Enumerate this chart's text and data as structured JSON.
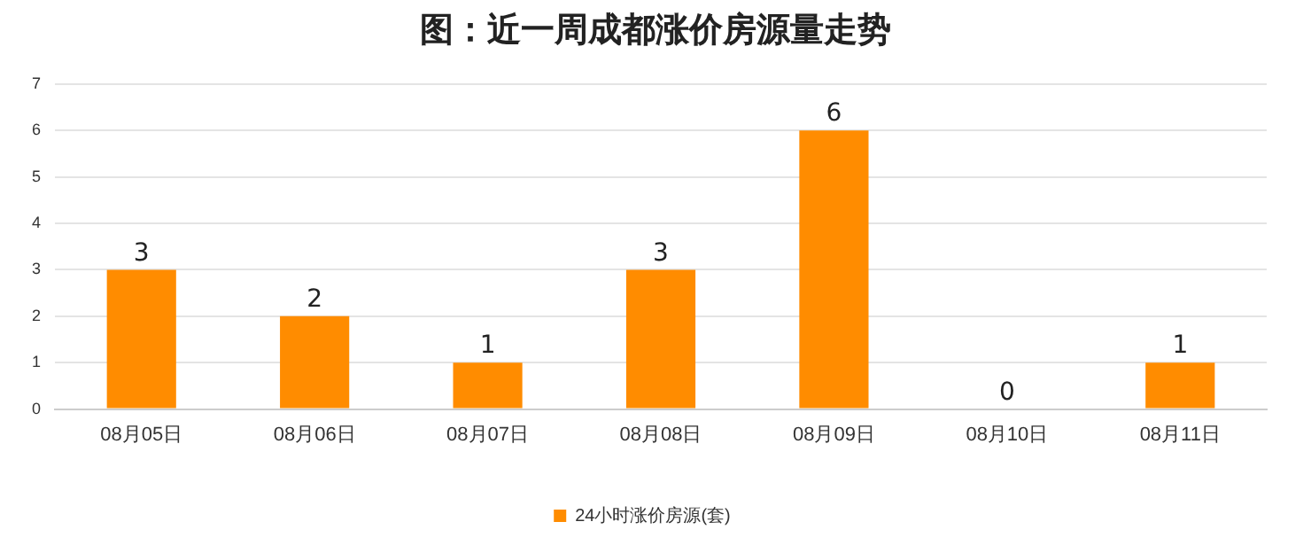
{
  "chart_data": {
    "type": "bar",
    "title": "图：近一周成都涨价房源量走势",
    "categories": [
      "08月05日",
      "08月06日",
      "08月07日",
      "08月08日",
      "08月09日",
      "08月10日",
      "08月11日"
    ],
    "series": [
      {
        "name": "24小时涨价房源(套)",
        "color": "#ff8c00",
        "values": [
          3,
          2,
          1,
          3,
          6,
          0,
          1
        ]
      }
    ],
    "ylim": [
      0,
      7
    ],
    "yticks": [
      0,
      1,
      2,
      3,
      4,
      5,
      6,
      7
    ],
    "grid": "y",
    "legend": "bottom",
    "data_labels": true
  }
}
